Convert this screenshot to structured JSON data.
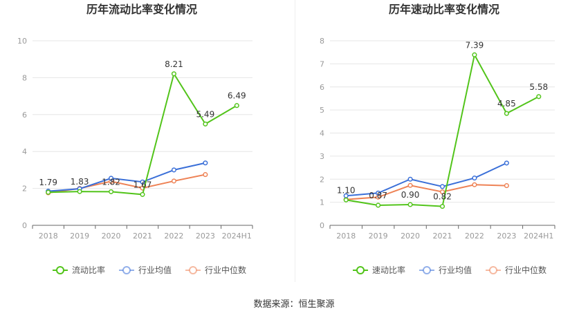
{
  "source_text": "数据来源：恒生聚源",
  "chart_data": [
    {
      "type": "line",
      "title": "历年流动比率变化情况",
      "categories": [
        "2018",
        "2019",
        "2020",
        "2021",
        "2022",
        "2023",
        "2024H1"
      ],
      "ylim": [
        0,
        10
      ],
      "yticks": [
        0,
        2,
        4,
        6,
        8,
        10
      ],
      "grid": true,
      "legend_position": "bottom",
      "series": [
        {
          "name": "流动比率",
          "color": "#52c41a",
          "values": [
            1.79,
            1.83,
            1.82,
            1.67,
            8.21,
            5.49,
            6.49
          ],
          "labels": [
            "1.79",
            "1.83",
            "1.82",
            "1.67",
            "8.21",
            "5.49",
            "6.49"
          ]
        },
        {
          "name": "行业均值",
          "color": "#3a6fd8",
          "values": [
            1.85,
            1.98,
            2.55,
            2.35,
            3.0,
            3.38,
            null
          ]
        },
        {
          "name": "行业中位数",
          "color": "#ee8255",
          "values": [
            1.76,
            2.0,
            2.38,
            2.02,
            2.4,
            2.75,
            null
          ]
        }
      ]
    },
    {
      "type": "line",
      "title": "历年速动比率变化情况",
      "categories": [
        "2018",
        "2019",
        "2020",
        "2021",
        "2022",
        "2023",
        "2024H1"
      ],
      "ylim": [
        0,
        8
      ],
      "yticks": [
        0,
        1,
        2,
        3,
        4,
        5,
        6,
        7,
        8
      ],
      "grid": true,
      "legend_position": "bottom",
      "series": [
        {
          "name": "速动比率",
          "color": "#52c41a",
          "values": [
            1.1,
            0.87,
            0.9,
            0.82,
            7.39,
            4.85,
            5.58
          ],
          "labels": [
            "1.10",
            "0.87",
            "0.90",
            "0.82",
            "7.39",
            "4.85",
            "5.58"
          ]
        },
        {
          "name": "行业均值",
          "color": "#3a6fd8",
          "values": [
            1.28,
            1.4,
            2.0,
            1.68,
            2.05,
            2.7,
            null
          ]
        },
        {
          "name": "行业中位数",
          "color": "#ee8255",
          "values": [
            1.12,
            1.22,
            1.73,
            1.45,
            1.76,
            1.72,
            null
          ]
        }
      ]
    }
  ]
}
